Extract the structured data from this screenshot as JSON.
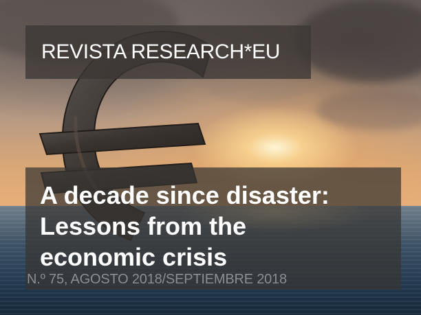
{
  "cover": {
    "magazine_title": "REVISTA RESEARCH*EU",
    "headline_line1": "A decade since disaster:",
    "headline_line2": "Lessons from the",
    "headline_line3": "economic crisis",
    "issue_line": "N.º 75, AGOSTO 2018/SEPTIEMBRE 2018",
    "image_subject": "euro-sign-sinking-in-sea-at-sunset"
  },
  "colors": {
    "title_text": "#ffffff",
    "issue_text": "#8a8f96",
    "overlay": "#3c3734"
  }
}
